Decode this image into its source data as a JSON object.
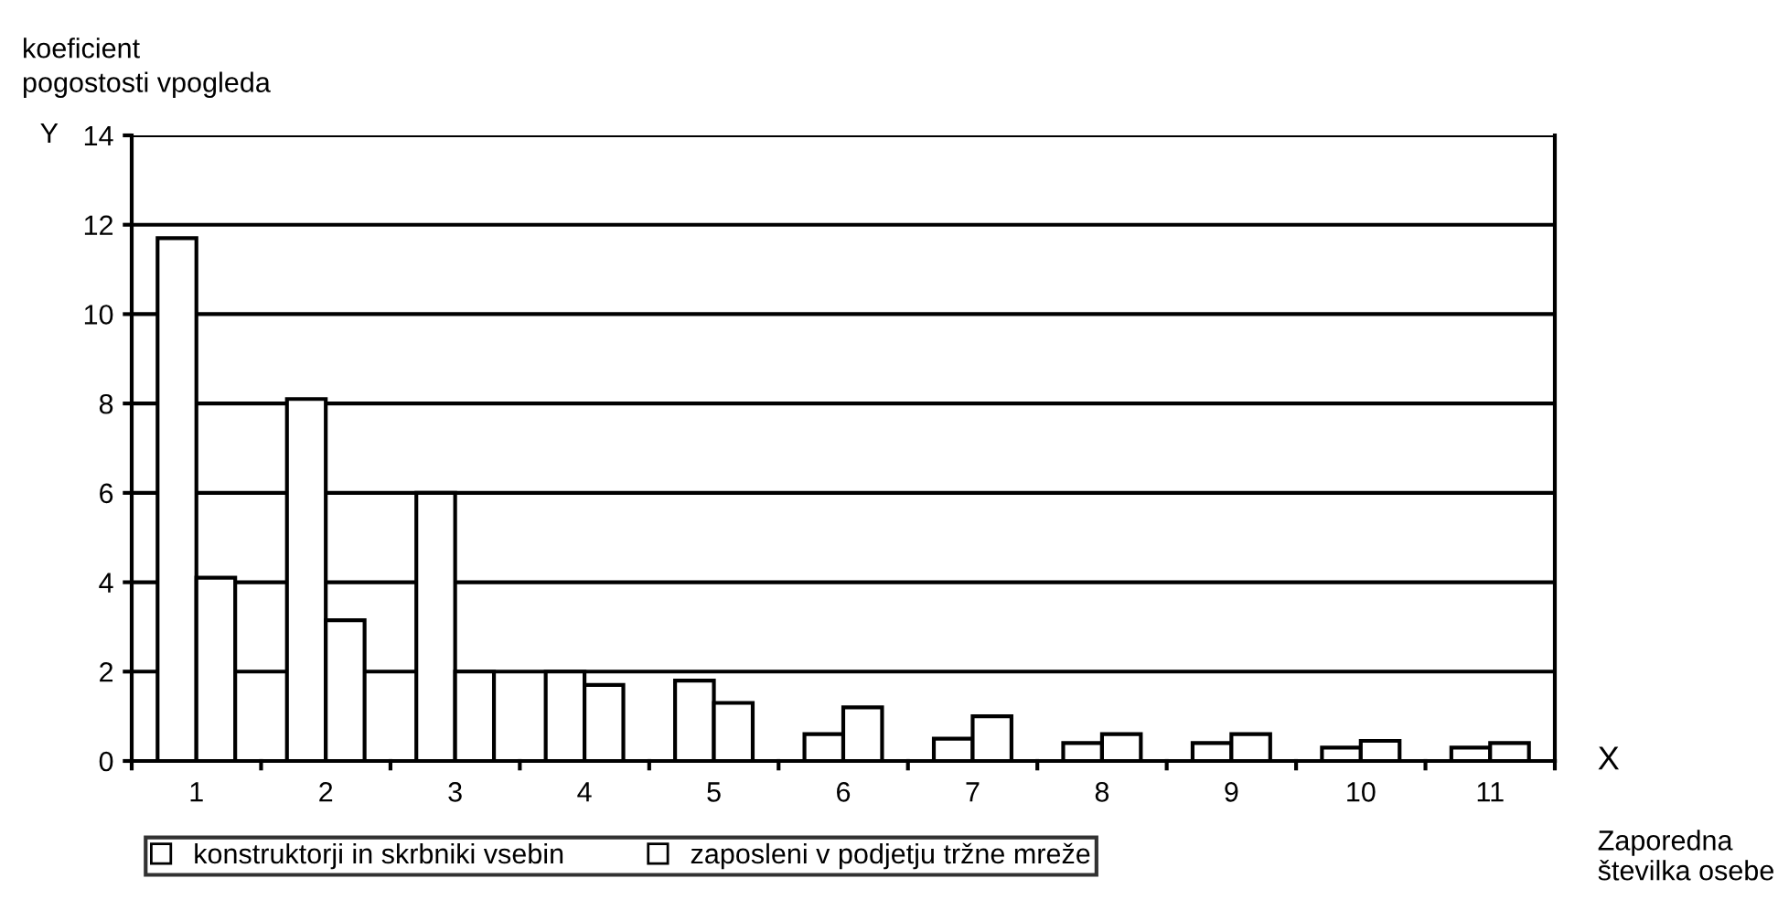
{
  "chart_data": {
    "type": "bar",
    "ylabel": "koeficient\npogostosti vpogleda",
    "xlabel": "Zaporedna\nštevilka osebe",
    "annotations": [
      "Y",
      "X"
    ],
    "categories": [
      "1",
      "2",
      "3",
      "4",
      "5",
      "6",
      "7",
      "8",
      "9",
      "10",
      "11"
    ],
    "series": [
      {
        "name": "konstruktorji in skrbniki vsebin",
        "color": "#ffffff",
        "values": [
          11.7,
          8.1,
          6.0,
          2.0,
          1.8,
          0.6,
          0.5,
          0.4,
          0.4,
          0.3,
          0.3
        ]
      },
      {
        "name": "zaposleni v podjetju tržne mreže",
        "color": "#ffffff",
        "values": [
          4.1,
          3.15,
          2.0,
          1.7,
          1.3,
          1.2,
          1.0,
          0.6,
          0.6,
          0.45,
          0.4
        ]
      }
    ],
    "ylim": [
      0,
      14
    ],
    "yticks": [
      0,
      2,
      4,
      6,
      8,
      10,
      12,
      14
    ],
    "grid": "y",
    "legend": "bottom"
  }
}
